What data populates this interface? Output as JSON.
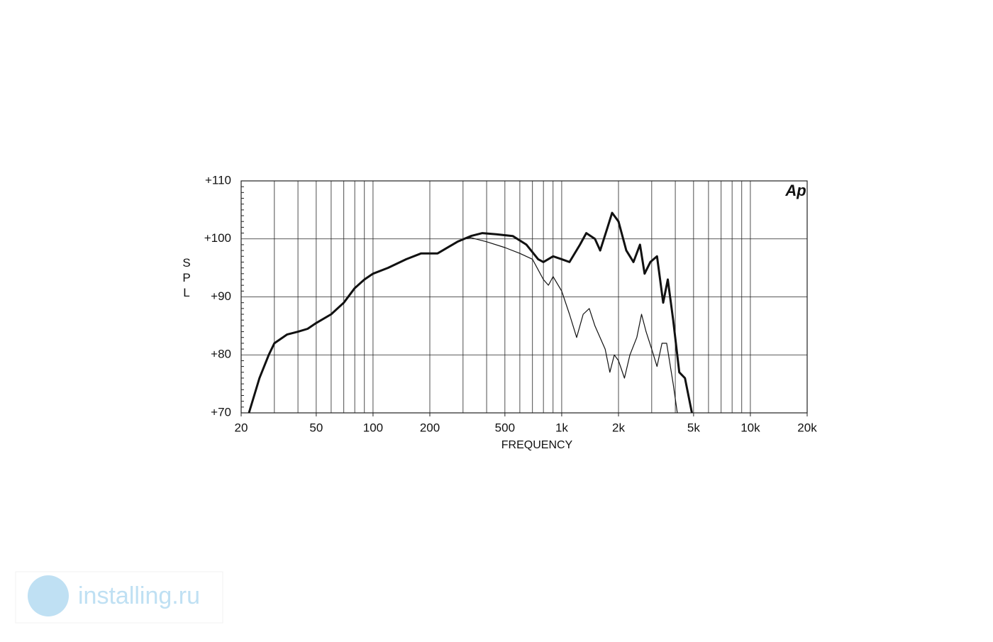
{
  "chart_data": {
    "type": "line",
    "y_label": "SPL",
    "x_label": "FREQUENCY",
    "logo": "Ap",
    "watermark": "installing.ru",
    "x_log": true,
    "grid": true,
    "xlim": [
      20,
      20000
    ],
    "ylim": [
      70,
      110
    ],
    "xticks": [
      20,
      50,
      100,
      200,
      500,
      {
        "value": 1000,
        "label": "1k"
      },
      {
        "value": 2000,
        "label": "2k"
      },
      {
        "value": 5000,
        "label": "5k"
      },
      {
        "value": 10000,
        "label": "10k"
      },
      {
        "value": 20000,
        "label": "20k"
      }
    ],
    "yticks": [
      {
        "value": 70,
        "label": "+70"
      },
      {
        "value": 80,
        "label": "+80"
      },
      {
        "value": 90,
        "label": "+90"
      },
      {
        "value": 100,
        "label": "+100"
      },
      {
        "value": 110,
        "label": "+110"
      }
    ],
    "series": [
      {
        "color": "#111111",
        "width": 3,
        "x": [
          22,
          25,
          28,
          30,
          35,
          40,
          45,
          50,
          60,
          70,
          80,
          90,
          100,
          120,
          150,
          180,
          220,
          280,
          330,
          380,
          450,
          550,
          650,
          750,
          800,
          900,
          1000,
          1100,
          1250,
          1350,
          1500,
          1600,
          1750,
          1850,
          2000,
          2200,
          2400,
          2600,
          2750,
          2950,
          3200,
          3450,
          3650,
          3900,
          4200,
          4500,
          4900
        ],
        "values": [
          70,
          76,
          80,
          82,
          83.5,
          84,
          84.5,
          85.5,
          87,
          89,
          91.5,
          93,
          94,
          95,
          96.5,
          97.5,
          97.5,
          99.5,
          100.5,
          101,
          100.8,
          100.5,
          99,
          96.5,
          96,
          97,
          96.5,
          96,
          99,
          101,
          100,
          98,
          102,
          104.5,
          103,
          98,
          96,
          99,
          94,
          96,
          97,
          89,
          93,
          86,
          77,
          76,
          70
        ]
      },
      {
        "color": "#111111",
        "width": 1.2,
        "x": [
          300,
          330,
          400,
          500,
          600,
          700,
          800,
          850,
          900,
          1000,
          1100,
          1200,
          1300,
          1400,
          1500,
          1700,
          1800,
          1900,
          2000,
          2150,
          2300,
          2500,
          2650,
          2800,
          3000,
          3200,
          3400,
          3600,
          3900,
          4100
        ],
        "values": [
          100,
          100.2,
          99.5,
          98.5,
          97.5,
          96.5,
          93,
          92,
          93.5,
          91,
          87,
          83,
          87,
          88,
          85,
          81,
          77,
          80,
          79,
          76,
          80,
          83,
          87,
          84,
          81,
          78,
          82,
          82,
          75,
          70
        ]
      }
    ]
  }
}
